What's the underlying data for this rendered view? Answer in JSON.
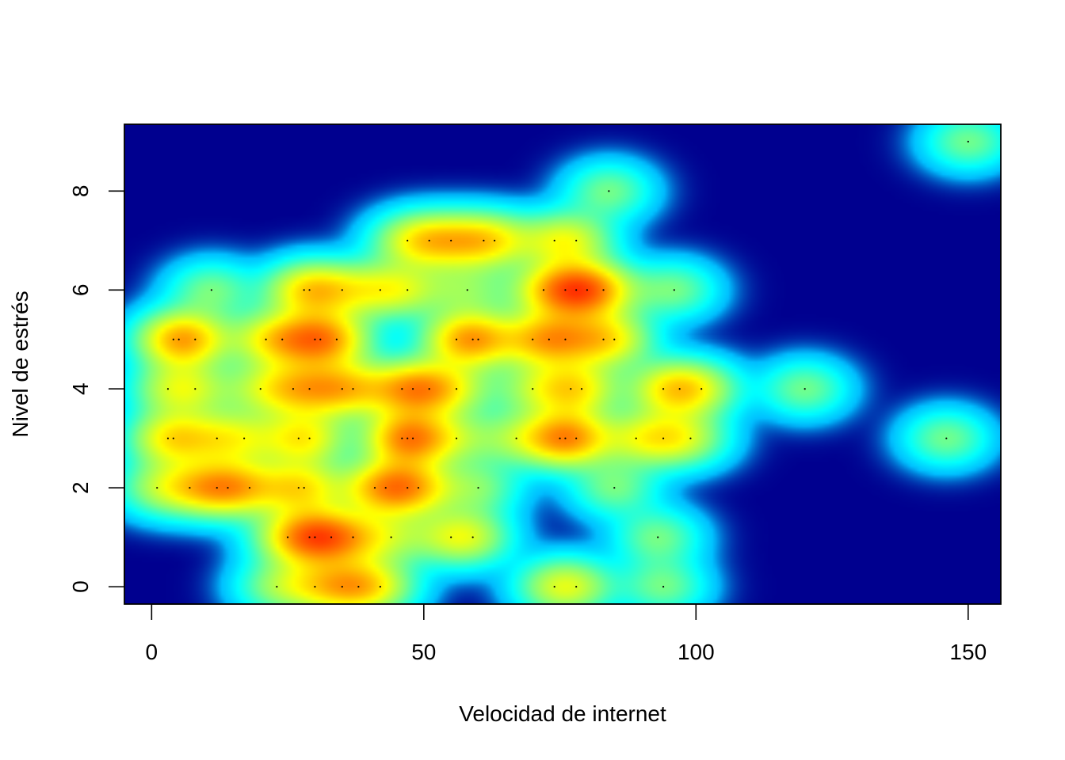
{
  "chart_data": {
    "type": "heatmap",
    "title": "",
    "xlabel": "Velocidad de internet",
    "ylabel": "Nivel de estrés",
    "xlim": [
      -5,
      156
    ],
    "ylim": [
      -0.35,
      9.35
    ],
    "x_ticks": [
      0,
      50,
      100,
      150
    ],
    "x_tick_labels": [
      "0",
      "50",
      "100",
      "150"
    ],
    "y_ticks": [
      0,
      2,
      4,
      6,
      8
    ],
    "y_tick_labels": [
      "0",
      "2",
      "4",
      "6",
      "8"
    ],
    "color_scale": [
      "#00008F",
      "#00BFFF",
      "#00FFFF",
      "#7FFF7F",
      "#FFFF00",
      "#FF8C00",
      "#FF3000"
    ],
    "grid": false,
    "legend": "none",
    "points": [
      {
        "x": 4,
        "y": 5
      },
      {
        "x": 5,
        "y": 5
      },
      {
        "x": 8,
        "y": 5
      },
      {
        "x": 21,
        "y": 5
      },
      {
        "x": 24,
        "y": 5
      },
      {
        "x": 30,
        "y": 5
      },
      {
        "x": 31,
        "y": 5
      },
      {
        "x": 34,
        "y": 5
      },
      {
        "x": 56,
        "y": 5
      },
      {
        "x": 59,
        "y": 5
      },
      {
        "x": 60,
        "y": 5
      },
      {
        "x": 70,
        "y": 5
      },
      {
        "x": 73,
        "y": 5
      },
      {
        "x": 76,
        "y": 5
      },
      {
        "x": 83,
        "y": 5
      },
      {
        "x": 85,
        "y": 5
      },
      {
        "x": 3,
        "y": 4
      },
      {
        "x": 8,
        "y": 4
      },
      {
        "x": 20,
        "y": 4
      },
      {
        "x": 26,
        "y": 4
      },
      {
        "x": 29,
        "y": 4
      },
      {
        "x": 35,
        "y": 4
      },
      {
        "x": 37,
        "y": 4
      },
      {
        "x": 46,
        "y": 4
      },
      {
        "x": 48,
        "y": 4
      },
      {
        "x": 51,
        "y": 4
      },
      {
        "x": 56,
        "y": 4
      },
      {
        "x": 70,
        "y": 4
      },
      {
        "x": 77,
        "y": 4
      },
      {
        "x": 79,
        "y": 4
      },
      {
        "x": 94,
        "y": 4
      },
      {
        "x": 97,
        "y": 4
      },
      {
        "x": 101,
        "y": 4
      },
      {
        "x": 120,
        "y": 4
      },
      {
        "x": 3,
        "y": 3
      },
      {
        "x": 4,
        "y": 3
      },
      {
        "x": 12,
        "y": 3
      },
      {
        "x": 17,
        "y": 3
      },
      {
        "x": 27,
        "y": 3
      },
      {
        "x": 29,
        "y": 3
      },
      {
        "x": 46,
        "y": 3
      },
      {
        "x": 47,
        "y": 3
      },
      {
        "x": 48,
        "y": 3
      },
      {
        "x": 56,
        "y": 3
      },
      {
        "x": 67,
        "y": 3
      },
      {
        "x": 75,
        "y": 3
      },
      {
        "x": 76,
        "y": 3
      },
      {
        "x": 78,
        "y": 3
      },
      {
        "x": 89,
        "y": 3
      },
      {
        "x": 94,
        "y": 3
      },
      {
        "x": 99,
        "y": 3
      },
      {
        "x": 146,
        "y": 3
      },
      {
        "x": 1,
        "y": 2
      },
      {
        "x": 7,
        "y": 2
      },
      {
        "x": 12,
        "y": 2
      },
      {
        "x": 14,
        "y": 2
      },
      {
        "x": 18,
        "y": 2
      },
      {
        "x": 27,
        "y": 2
      },
      {
        "x": 28,
        "y": 2
      },
      {
        "x": 41,
        "y": 2
      },
      {
        "x": 43,
        "y": 2
      },
      {
        "x": 47,
        "y": 2
      },
      {
        "x": 49,
        "y": 2
      },
      {
        "x": 60,
        "y": 2
      },
      {
        "x": 85,
        "y": 2
      },
      {
        "x": 25,
        "y": 1
      },
      {
        "x": 29,
        "y": 1
      },
      {
        "x": 30,
        "y": 1
      },
      {
        "x": 33,
        "y": 1
      },
      {
        "x": 37,
        "y": 1
      },
      {
        "x": 44,
        "y": 1
      },
      {
        "x": 55,
        "y": 1
      },
      {
        "x": 59,
        "y": 1
      },
      {
        "x": 93,
        "y": 1
      },
      {
        "x": 23,
        "y": 0
      },
      {
        "x": 30,
        "y": 0
      },
      {
        "x": 35,
        "y": 0
      },
      {
        "x": 38,
        "y": 0
      },
      {
        "x": 42,
        "y": 0
      },
      {
        "x": 74,
        "y": 0
      },
      {
        "x": 78,
        "y": 0
      },
      {
        "x": 94,
        "y": 0
      },
      {
        "x": 11,
        "y": 6
      },
      {
        "x": 28,
        "y": 6
      },
      {
        "x": 29,
        "y": 6
      },
      {
        "x": 35,
        "y": 6
      },
      {
        "x": 42,
        "y": 6
      },
      {
        "x": 47,
        "y": 6
      },
      {
        "x": 58,
        "y": 6
      },
      {
        "x": 72,
        "y": 6
      },
      {
        "x": 76,
        "y": 6
      },
      {
        "x": 78,
        "y": 6
      },
      {
        "x": 80,
        "y": 6
      },
      {
        "x": 83,
        "y": 6
      },
      {
        "x": 96,
        "y": 6
      },
      {
        "x": 47,
        "y": 7
      },
      {
        "x": 51,
        "y": 7
      },
      {
        "x": 55,
        "y": 7
      },
      {
        "x": 61,
        "y": 7
      },
      {
        "x": 63,
        "y": 7
      },
      {
        "x": 74,
        "y": 7
      },
      {
        "x": 78,
        "y": 7
      },
      {
        "x": 84,
        "y": 8
      },
      {
        "x": 150,
        "y": 9
      }
    ]
  }
}
